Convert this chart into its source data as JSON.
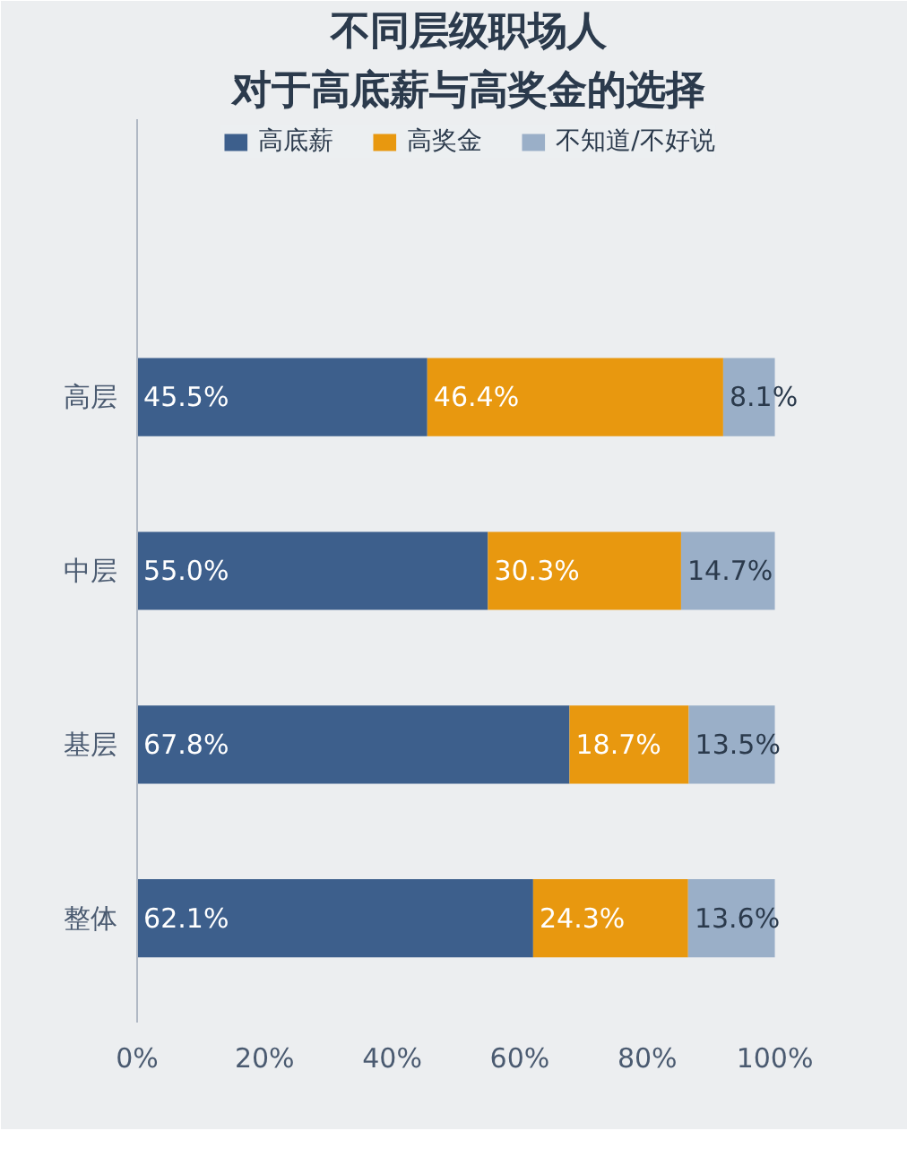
{
  "chart_data": {
    "type": "bar",
    "orientation": "horizontal",
    "stacked": true,
    "title": "不同层级职场人",
    "subtitle": "对于高底薪与高奖金的选择",
    "categories": [
      "高层",
      "中层",
      "基层",
      "整体"
    ],
    "series": [
      {
        "name": "高底薪",
        "color": "#3d5f8c",
        "values": [
          45.5,
          55.0,
          67.8,
          62.1
        ],
        "value_labels": [
          "45.5%",
          "55.0%",
          "67.8%",
          "62.1%"
        ]
      },
      {
        "name": "高奖金",
        "color": "#e8980f",
        "values": [
          46.4,
          30.3,
          18.7,
          24.3
        ],
        "value_labels": [
          "46.4%",
          "30.3%",
          "18.7%",
          "24.3%"
        ]
      },
      {
        "name": "不知道/不好说",
        "color": "#9aafc8",
        "values": [
          8.1,
          14.7,
          13.5,
          13.6
        ],
        "value_labels": [
          "8.1%",
          "14.7%",
          "13.5%",
          "13.6%"
        ]
      }
    ],
    "xlim": [
      0,
      104
    ],
    "xticks": [
      {
        "value": 0,
        "label": "0%"
      },
      {
        "value": 20,
        "label": "20%"
      },
      {
        "value": 40,
        "label": "40%"
      },
      {
        "value": 60,
        "label": "60%"
      },
      {
        "value": 80,
        "label": "80%"
      },
      {
        "value": 100,
        "label": "100%"
      }
    ],
    "legend": "top"
  }
}
